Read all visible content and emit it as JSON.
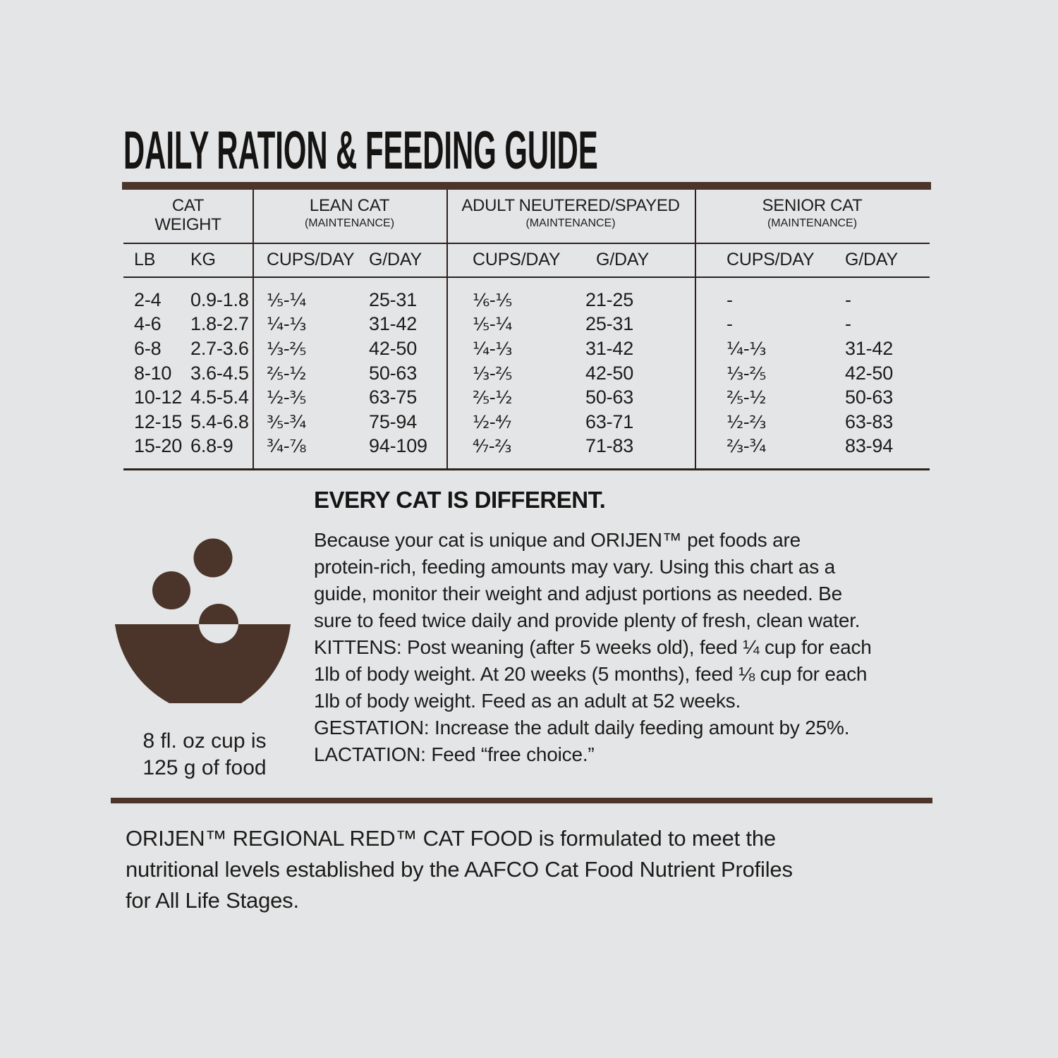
{
  "page": {
    "title": "DAILY RATION & FEEDING GUIDE"
  },
  "table": {
    "groups": [
      {
        "title_lines": [
          "CAT",
          "WEIGHT"
        ],
        "sub": ""
      },
      {
        "title_lines": [
          "LEAN CAT"
        ],
        "sub": "(MAINTENANCE)"
      },
      {
        "title_lines": [
          "ADULT NEUTERED/SPAYED"
        ],
        "sub": "(MAINTENANCE)"
      },
      {
        "title_lines": [
          "SENIOR CAT"
        ],
        "sub": "(MAINTENANCE)"
      }
    ],
    "subheaders": [
      "LB",
      "KG",
      "CUPS/DAY",
      "G/DAY",
      "CUPS/DAY",
      "G/DAY",
      "CUPS/DAY",
      "G/DAY"
    ],
    "rows": [
      [
        "2-4",
        "0.9-1.8",
        "⅕-¼",
        "25-31",
        "⅙-⅕",
        "21-25",
        "-",
        "-"
      ],
      [
        "4-6",
        "1.8-2.7",
        "¼-⅓",
        "31-42",
        "⅕-¼",
        "25-31",
        "-",
        "-"
      ],
      [
        "6-8",
        "2.7-3.6",
        "⅓-⅖",
        "42-50",
        "¼-⅓",
        "31-42",
        "¼-⅓",
        "31-42"
      ],
      [
        "8-10",
        "3.6-4.5",
        "⅖-½",
        "50-63",
        "⅓-⅖",
        "42-50",
        "⅓-⅖",
        "42-50"
      ],
      [
        "10-12",
        "4.5-5.4",
        "½-⅗",
        "63-75",
        "⅖-½",
        "50-63",
        "⅖-½",
        "50-63"
      ],
      [
        "12-15",
        "5.4-6.8",
        "⅗-¾",
        "75-94",
        "½-⁴⁄₇",
        "63-71",
        "½-⅔",
        "63-83"
      ],
      [
        "15-20",
        "6.8-9",
        "¾-⅞",
        "94-109",
        "⁴⁄₇-⅔",
        "71-83",
        "⅔-¾",
        "83-94"
      ]
    ]
  },
  "info": {
    "heading": "EVERY CAT IS DIFFERENT.",
    "body_lines": [
      "Because your cat is unique and ORIJEN™ pet foods are",
      "protein-rich, feeding amounts may vary. Using this chart as a",
      "guide, monitor their weight and adjust portions as needed. Be",
      "sure to feed twice daily and provide plenty of fresh, clean water.",
      "KITTENS: Post weaning (after 5 weeks old), feed ¼ cup for each",
      "1lb of body weight. At 20 weeks (5 months), feed ⅛ cup for each",
      "1lb of body weight. Feed as an adult at 52 weeks.",
      "GESTATION: Increase the adult daily feeding amount by 25%.",
      "LACTATION: Feed “free choice.”"
    ],
    "cup_note_lines": [
      "8 fl. oz cup is",
      "125 g of food"
    ]
  },
  "footer": {
    "lines": [
      "ORIJEN™ REGIONAL RED™ CAT FOOD is formulated to meet the",
      "nutritional levels established by the AAFCO Cat Food Nutrient Profiles",
      "for All Life Stages."
    ]
  },
  "icons": {
    "bowl": "food-bowl-icon"
  },
  "colors": {
    "background": "#e4e5e7",
    "brown": "#4b3429",
    "line": "#2c221c",
    "text": "#1d1c1a"
  }
}
